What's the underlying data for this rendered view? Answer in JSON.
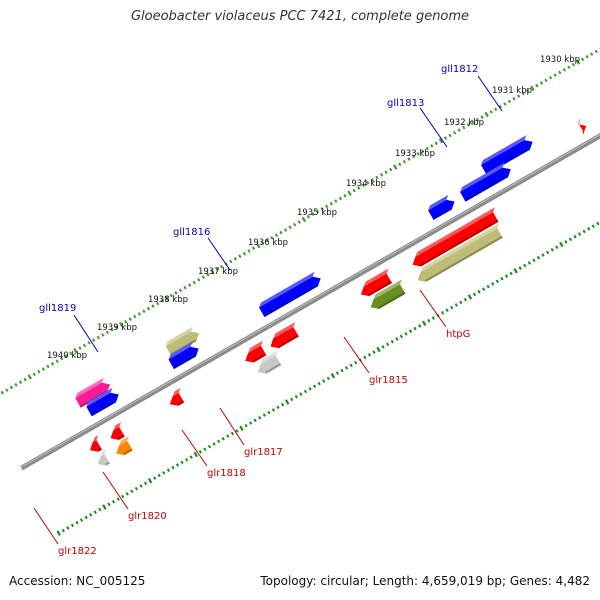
{
  "title": "Gloeobacter violaceus PCC 7421, complete genome",
  "footer": {
    "accession": "Accession: NC_005125",
    "topology": "Topology: circular; Length: 4,659,019 bp; Genes: 4,482"
  },
  "colors": {
    "backbone": "#8c8c8c",
    "tick_forward": "#3c9a2c",
    "tick_reverse": "#1a8a1a",
    "label_forward": "#0000cc",
    "label_reverse": "#cc0000",
    "scale_text": "#111111"
  },
  "scale": {
    "labels": [
      "1930 kbp",
      "1931 kbp",
      "1932 kbp",
      "1933 kbp",
      "1934 kbp",
      "1935 kbp",
      "1936 kbp",
      "1937 kbp",
      "1938 kbp",
      "1939 kbp",
      "1940 kbp"
    ]
  },
  "genes": [
    {
      "name": "",
      "strand": "+",
      "lane": 1,
      "start": 0.47,
      "end": 0.57,
      "color": "#ff0000"
    },
    {
      "name": "",
      "strand": "+",
      "lane": 0,
      "start": 1.5,
      "end": 2.57,
      "color": "#0000ff"
    },
    {
      "name": "gll1812",
      "strand": "+",
      "lane": 1,
      "start": 2.12,
      "end": 3.17,
      "color": "#0000ff"
    },
    {
      "name": "gll1813",
      "strand": "+",
      "lane": 1,
      "start": 3.35,
      "end": 3.87,
      "color": "#0000ff"
    },
    {
      "name": "gll1816",
      "strand": "+",
      "lane": 1,
      "start": 6.28,
      "end": 7.57,
      "color": "#0000ff"
    },
    {
      "name": "gll1819",
      "strand": "+",
      "lane": 0,
      "start": 8.8,
      "end": 9.47,
      "color": "#bdbd78"
    },
    {
      "name": "",
      "strand": "+",
      "lane": 1,
      "start": 8.95,
      "end": 9.55,
      "color": "#0000ff"
    },
    {
      "name": "",
      "strand": "+",
      "lane": 0,
      "start": 10.75,
      "end": 11.45,
      "color": "#ff1a9a"
    },
    {
      "name": "",
      "strand": "+",
      "lane": 1,
      "start": 10.7,
      "end": 11.35,
      "color": "#0000ff"
    },
    {
      "name": "",
      "strand": "-",
      "lane": 0,
      "start": 0.0,
      "end": 0.23,
      "color": "#ff0000"
    },
    {
      "name": "",
      "strand": "-",
      "lane": 1,
      "start": 0.0,
      "end": 0.23,
      "color": "#33cc33"
    },
    {
      "name": "",
      "strand": "-",
      "lane": 2,
      "start": 0.0,
      "end": 0.23,
      "color": "#ff8800"
    },
    {
      "name": "",
      "strand": "-",
      "lane": 0,
      "start": 2.82,
      "end": 4.64,
      "color": "#ff0000"
    },
    {
      "name": "htpG",
      "strand": "-",
      "lane": 1,
      "start": 2.9,
      "end": 4.7,
      "color": "#bdbd78"
    },
    {
      "name": "",
      "strand": "-",
      "lane": 0,
      "start": 5.15,
      "end": 5.77,
      "color": "#ff0000"
    },
    {
      "name": "glr1815",
      "strand": "-",
      "lane": 1,
      "start": 5.03,
      "end": 5.73,
      "color": "#6b8e23"
    },
    {
      "name": "glr1817",
      "strand": "-",
      "lane": 0,
      "start": 7.19,
      "end": 7.75,
      "color": "#ff0000"
    },
    {
      "name": "",
      "strand": "-",
      "lane": 0,
      "start": 7.9,
      "end": 8.3,
      "color": "#ff0000"
    },
    {
      "name": "glr1818",
      "strand": "-",
      "lane": 1,
      "start": 7.75,
      "end": 8.2,
      "color": "#c8c8c8"
    },
    {
      "name": "glr1820",
      "strand": "-",
      "lane": 0,
      "start": 9.7,
      "end": 9.95,
      "color": "#ff0000"
    },
    {
      "name": "",
      "strand": "-",
      "lane": 0,
      "start": 11.0,
      "end": 11.25,
      "color": "#ff0000"
    },
    {
      "name": "glr1822",
      "strand": "-",
      "lane": 1,
      "start": 11.0,
      "end": 11.3,
      "color": "#ff8800"
    },
    {
      "name": "",
      "strand": "-",
      "lane": 1,
      "start": 11.5,
      "end": 11.7,
      "color": "#c8c8c8"
    },
    {
      "name": "",
      "strand": "-",
      "lane": 0,
      "start": 11.5,
      "end": 11.7,
      "color": "#ff0000"
    }
  ]
}
